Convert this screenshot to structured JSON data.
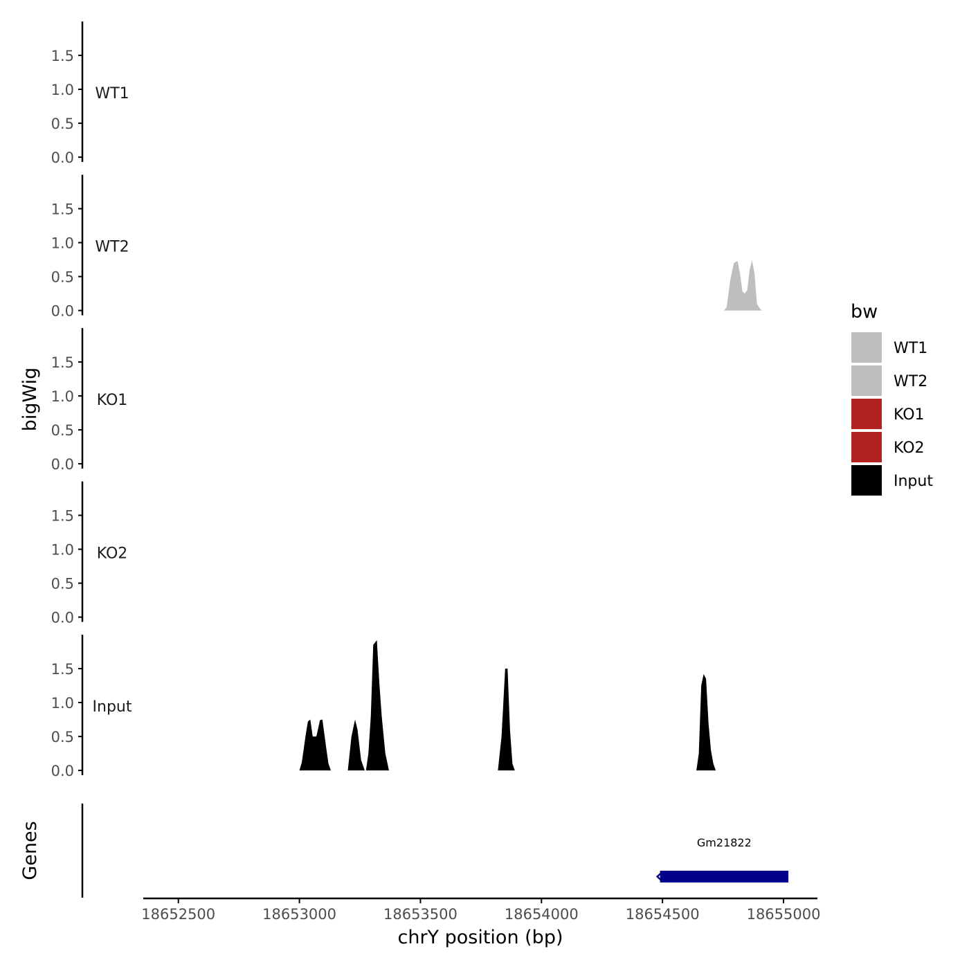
{
  "chart_data": {
    "type": "area",
    "title": "",
    "ylabel": "bigWig",
    "genes_ylabel": "Genes",
    "xlabel": "chrY position (bp)",
    "xlim": [
      18652355,
      18655140
    ],
    "ylim": [
      -0.05,
      2.0
    ],
    "y_ticks": [
      0.0,
      0.5,
      1.0,
      1.5
    ],
    "y_tick_labels": [
      "0.0",
      "0.5",
      "1.0",
      "1.5"
    ],
    "x_ticks": [
      18652500,
      18653000,
      18653500,
      18654000,
      18654500,
      18655000
    ],
    "x_tick_labels": [
      "18652500",
      "18653000",
      "18653500",
      "18654000",
      "18654500",
      "18655000"
    ],
    "grid": false,
    "legend": {
      "title": "bw",
      "position": "right",
      "items": [
        {
          "label": "WT1",
          "color": "#bebebe"
        },
        {
          "label": "WT2",
          "color": "#bebebe"
        },
        {
          "label": "KO1",
          "color": "#b22222"
        },
        {
          "label": "KO2",
          "color": "#b22222"
        },
        {
          "label": "Input",
          "color": "#000000"
        }
      ]
    },
    "series": [
      {
        "name": "WT1",
        "color": "#bebebe",
        "x": [],
        "y": []
      },
      {
        "name": "WT2",
        "color": "#bebebe",
        "x": [
          18654755,
          18654765,
          18654780,
          18654795,
          18654810,
          18654820,
          18654830,
          18654840,
          18654850,
          18654860,
          18654870,
          18654880,
          18654890,
          18654900,
          18654910
        ],
        "y": [
          0.0,
          0.05,
          0.45,
          0.7,
          0.73,
          0.55,
          0.28,
          0.25,
          0.3,
          0.6,
          0.74,
          0.55,
          0.1,
          0.04,
          0.0
        ]
      },
      {
        "name": "KO1",
        "color": "#b22222",
        "x": [],
        "y": []
      },
      {
        "name": "KO2",
        "color": "#b22222",
        "x": [],
        "y": []
      },
      {
        "name": "Input",
        "color": "#000000",
        "x": [
          18653000,
          18653010,
          18653025,
          18653035,
          18653045,
          18653055,
          18653070,
          18653085,
          18653095,
          18653110,
          18653120,
          18653130,
          18653200,
          18653215,
          18653230,
          18653240,
          18653255,
          18653270,
          18653275,
          18653285,
          18653295,
          18653305,
          18653320,
          18653330,
          18653340,
          18653355,
          18653370,
          18653820,
          18653835,
          18653850,
          18653860,
          18653870,
          18653880,
          18653890,
          18654640,
          18654650,
          18654660,
          18654670,
          18654680,
          18654690,
          18654700,
          18654710,
          18654720
        ],
        "y": [
          0.0,
          0.12,
          0.5,
          0.72,
          0.75,
          0.5,
          0.5,
          0.74,
          0.75,
          0.35,
          0.1,
          0.0,
          0.0,
          0.5,
          0.75,
          0.6,
          0.15,
          0.0,
          0.0,
          0.25,
          0.8,
          1.85,
          1.92,
          1.3,
          0.8,
          0.25,
          0.0,
          0.0,
          0.5,
          1.5,
          1.5,
          0.6,
          0.1,
          0.0,
          0.0,
          0.25,
          1.25,
          1.42,
          1.35,
          0.7,
          0.3,
          0.1,
          0.0
        ]
      }
    ],
    "genes": [
      {
        "name": "Gm21822",
        "start": 18654490,
        "end": 18655020,
        "strand": "-",
        "color": "#00008b"
      }
    ]
  }
}
